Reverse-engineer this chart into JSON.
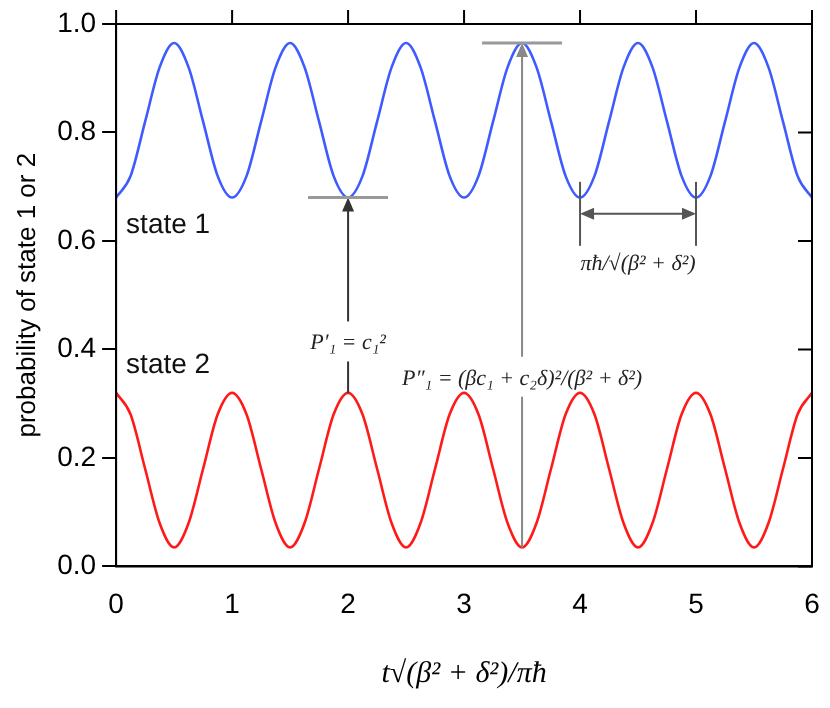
{
  "chart_data": {
    "type": "line",
    "xlabel": "t√(β² + δ²)/πħ",
    "ylabel": "probability of state 1 or 2",
    "x": [
      0,
      0.125,
      0.25,
      0.375,
      0.5,
      0.625,
      0.75,
      0.875,
      1,
      1.125,
      1.25,
      1.375,
      1.5,
      1.625,
      1.75,
      1.875,
      2,
      2.125,
      2.25,
      2.375,
      2.5,
      2.625,
      2.75,
      2.875,
      3,
      3.125,
      3.25,
      3.375,
      3.5,
      3.625,
      3.75,
      3.875,
      4,
      4.125,
      4.25,
      4.375,
      4.5,
      4.625,
      4.75,
      4.875,
      5,
      5.125,
      5.25,
      5.375,
      5.5,
      5.625,
      5.75,
      5.875,
      6
    ],
    "series": [
      {
        "name": "state 1",
        "color": "#3f5bff",
        "values": [
          0.68,
          0.72,
          0.82,
          0.92,
          0.965,
          0.92,
          0.82,
          0.72,
          0.68,
          0.72,
          0.82,
          0.92,
          0.965,
          0.92,
          0.82,
          0.72,
          0.68,
          0.72,
          0.82,
          0.92,
          0.965,
          0.92,
          0.82,
          0.72,
          0.68,
          0.72,
          0.82,
          0.92,
          0.965,
          0.92,
          0.82,
          0.72,
          0.68,
          0.72,
          0.82,
          0.92,
          0.965,
          0.92,
          0.82,
          0.72,
          0.68,
          0.72,
          0.82,
          0.92,
          0.965,
          0.92,
          0.82,
          0.72,
          0.68
        ]
      },
      {
        "name": "state 2",
        "color": "#ff1a1a",
        "values": [
          0.32,
          0.28,
          0.18,
          0.08,
          0.035,
          0.08,
          0.18,
          0.28,
          0.32,
          0.28,
          0.18,
          0.08,
          0.035,
          0.08,
          0.18,
          0.28,
          0.32,
          0.28,
          0.18,
          0.08,
          0.035,
          0.08,
          0.18,
          0.28,
          0.32,
          0.28,
          0.18,
          0.08,
          0.035,
          0.08,
          0.18,
          0.28,
          0.32,
          0.28,
          0.18,
          0.08,
          0.035,
          0.08,
          0.18,
          0.28,
          0.32,
          0.28,
          0.18,
          0.08,
          0.035,
          0.08,
          0.18,
          0.28,
          0.32
        ]
      }
    ],
    "xlim": [
      0,
      6
    ],
    "xticks": [
      0,
      1,
      2,
      3,
      4,
      5,
      6
    ],
    "ylim": [
      0,
      1
    ],
    "yticks": [
      {
        "value": 0,
        "label": "0.0"
      },
      0.2,
      0.4,
      0.6,
      0.8,
      {
        "value": 1,
        "label": "1.0"
      }
    ],
    "annotations": [
      {
        "text": "P′₁ = c₁²",
        "x": 2,
        "y": 0.68
      },
      {
        "text": "P″₁ = (βc₁ + c₂δ)²/(β² + δ²)",
        "x": 3.5,
        "y": 0.965
      },
      "πħ/√(β² + δ²)"
    ]
  }
}
